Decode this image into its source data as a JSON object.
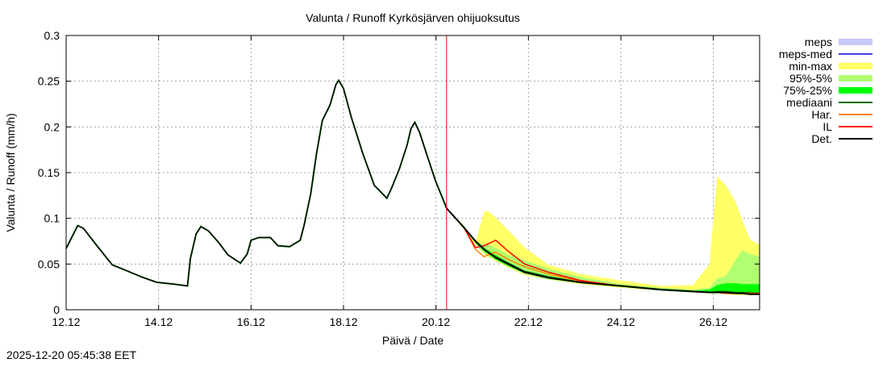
{
  "timestamp": "2025-12-20 05:45:38 EET",
  "chart_data": {
    "type": "line",
    "title": "Valunta / Runoff  Kyrkösjärven ohijuoksutus",
    "xlabel": "Päivä / Date",
    "ylabel": "Valunta / Runoff (mm/h)",
    "xlim": [
      "2025-12-12 00:00",
      "2025-12-27 00:00"
    ],
    "ylim": [
      0,
      0.3
    ],
    "grid": true,
    "legend_position": "right",
    "x_ticks": [
      {
        "date": "2025-12-12 00:00",
        "label": "12.12"
      },
      {
        "date": "2025-12-14 00:00",
        "label": "14.12"
      },
      {
        "date": "2025-12-16 00:00",
        "label": "16.12"
      },
      {
        "date": "2025-12-18 00:00",
        "label": "18.12"
      },
      {
        "date": "2025-12-20 00:00",
        "label": "20.12"
      },
      {
        "date": "2025-12-22 00:00",
        "label": "22.12"
      },
      {
        "date": "2025-12-24 00:00",
        "label": "24.12"
      },
      {
        "date": "2025-12-26 00:00",
        "label": "26.12"
      }
    ],
    "y_ticks": [
      {
        "value": 0,
        "label": "0"
      },
      {
        "value": 0.05,
        "label": "0.05"
      },
      {
        "value": 0.1,
        "label": "0.1"
      },
      {
        "value": 0.15,
        "label": "0.15"
      },
      {
        "value": 0.2,
        "label": "0.2"
      },
      {
        "value": 0.25,
        "label": "0.25"
      },
      {
        "value": 0.3,
        "label": "0.3"
      }
    ],
    "forecast_start": "2025-12-20 05:30",
    "forecast_start_color": "#ff0000",
    "legend": [
      {
        "name": "meps",
        "kind": "band",
        "color": "#c8c8f8"
      },
      {
        "name": "meps-med",
        "kind": "line",
        "color": "#4040e0"
      },
      {
        "name": "min-max",
        "kind": "band",
        "color": "#ffff66"
      },
      {
        "name": "95%-5%",
        "kind": "band",
        "color": "#b0ff70"
      },
      {
        "name": "75%-25%",
        "kind": "band",
        "color": "#00ff00"
      },
      {
        "name": "mediaani",
        "kind": "line",
        "color": "#007000"
      },
      {
        "name": "Har.",
        "kind": "line",
        "color": "#ff8000"
      },
      {
        "name": "IL",
        "kind": "line",
        "color": "#ff0000"
      },
      {
        "name": "Det.",
        "kind": "line",
        "color": "#000000"
      }
    ],
    "observed": {
      "name": "Det.",
      "x": [
        "2025-12-12 00:00",
        "2025-12-12 06:00",
        "2025-12-12 09:00",
        "2025-12-12 16:00",
        "2025-12-13 00:00",
        "2025-12-13 06:00",
        "2025-12-13 15:00",
        "2025-12-13 23:00",
        "2025-12-14 08:00",
        "2025-12-14 15:00",
        "2025-12-14 16:30",
        "2025-12-14 19:30",
        "2025-12-14 22:00",
        "2025-12-15 02:00",
        "2025-12-15 07:00",
        "2025-12-15 12:00",
        "2025-12-15 18:30",
        "2025-12-15 22:00",
        "2025-12-16 00:00",
        "2025-12-16 04:00",
        "2025-12-16 10:00",
        "2025-12-16 14:00",
        "2025-12-16 20:00",
        "2025-12-17 01:30",
        "2025-12-17 03:30",
        "2025-12-17 07:00",
        "2025-12-17 10:00",
        "2025-12-17 13:00",
        "2025-12-17 17:00",
        "2025-12-17 20:00",
        "2025-12-17 21:30",
        "2025-12-18 00:00",
        "2025-12-18 04:00",
        "2025-12-18 10:00",
        "2025-12-18 16:00",
        "2025-12-18 22:30",
        "2025-12-19 00:45",
        "2025-12-19 05:00",
        "2025-12-19 09:00",
        "2025-12-19 11:00",
        "2025-12-19 13:00",
        "2025-12-19 15:30",
        "2025-12-19 19:30",
        "2025-12-19 23:45",
        "2025-12-20 04:00",
        "2025-12-20 05:30"
      ],
      "y": [
        0.067,
        0.092,
        0.089,
        0.07,
        0.049,
        0.044,
        0.036,
        0.03,
        0.028,
        0.026,
        0.056,
        0.083,
        0.091,
        0.086,
        0.074,
        0.06,
        0.051,
        0.061,
        0.076,
        0.079,
        0.079,
        0.07,
        0.069,
        0.076,
        0.092,
        0.127,
        0.171,
        0.207,
        0.224,
        0.246,
        0.251,
        0.242,
        0.211,
        0.171,
        0.136,
        0.122,
        0.132,
        0.154,
        0.18,
        0.198,
        0.205,
        0.194,
        0.168,
        0.141,
        0.119,
        0.111
      ]
    },
    "forecast": {
      "x": [
        "2025-12-20 05:30",
        "2025-12-20 14:30",
        "2025-12-20 20:30",
        "2025-12-21 01:00",
        "2025-12-21 03:00",
        "2025-12-21 07:00",
        "2025-12-21 13:30",
        "2025-12-21 22:00",
        "2025-12-22 10:30",
        "2025-12-23 03:00",
        "2025-12-24 00:00",
        "2025-12-24 21:00",
        "2025-12-25 13:30",
        "2025-12-25 22:00",
        "2025-12-26 02:00",
        "2025-12-26 06:30",
        "2025-12-26 11:30",
        "2025-12-26 15:00",
        "2025-12-26 19:00",
        "2025-12-27 00:00"
      ],
      "min-max": {
        "lower": [
          0.111,
          0.088,
          0.071,
          0.061,
          0.058,
          0.053,
          0.046,
          0.038,
          0.033,
          0.028,
          0.024,
          0.021,
          0.019,
          0.018,
          0.018,
          0.017,
          0.016,
          0.016,
          0.016,
          0.016
        ],
        "upper": [
          0.111,
          0.092,
          0.074,
          0.107,
          0.108,
          0.101,
          0.087,
          0.068,
          0.049,
          0.039,
          0.032,
          0.026,
          0.027,
          0.05,
          0.146,
          0.136,
          0.118,
          0.098,
          0.077,
          0.071
        ]
      },
      "95%-5%": {
        "lower": [
          0.111,
          0.088,
          0.072,
          0.062,
          0.059,
          0.054,
          0.047,
          0.039,
          0.033,
          0.029,
          0.025,
          0.021,
          0.019,
          0.018,
          0.018,
          0.018,
          0.017,
          0.017,
          0.017,
          0.017
        ],
        "upper": [
          0.111,
          0.092,
          0.072,
          0.072,
          0.071,
          0.068,
          0.06,
          0.054,
          0.045,
          0.036,
          0.028,
          0.024,
          0.022,
          0.024,
          0.034,
          0.037,
          0.054,
          0.065,
          0.061,
          0.058
        ]
      },
      "75%-25%": {
        "lower": [
          0.111,
          0.089,
          0.073,
          0.064,
          0.061,
          0.055,
          0.048,
          0.04,
          0.034,
          0.029,
          0.025,
          0.021,
          0.019,
          0.019,
          0.019,
          0.018,
          0.018,
          0.018,
          0.018,
          0.018
        ],
        "upper": [
          0.111,
          0.091,
          0.076,
          0.068,
          0.065,
          0.06,
          0.052,
          0.043,
          0.037,
          0.031,
          0.027,
          0.023,
          0.021,
          0.022,
          0.027,
          0.029,
          0.029,
          0.028,
          0.028,
          0.028
        ]
      },
      "mediaani": [
        0.111,
        0.09,
        0.075,
        0.066,
        0.063,
        0.058,
        0.051,
        0.042,
        0.036,
        0.03,
        0.026,
        0.022,
        0.02,
        0.019,
        0.02,
        0.02,
        0.019,
        0.019,
        0.019,
        0.018
      ],
      "Har.": [
        0.111,
        0.09,
        0.066,
        0.058,
        0.06,
        0.063,
        0.055,
        0.047,
        0.039,
        0.031,
        0.026,
        0.022,
        0.02,
        0.019,
        0.019,
        0.019,
        0.018,
        0.018,
        0.018,
        0.018
      ],
      "IL": [
        0.111,
        0.09,
        0.068,
        0.07,
        0.072,
        0.076,
        0.064,
        0.05,
        0.041,
        0.032,
        0.026,
        0.022,
        0.02,
        0.019,
        0.019,
        0.018,
        0.018,
        0.018,
        0.017,
        0.018
      ],
      "Det.": [
        0.111,
        0.09,
        0.075,
        0.066,
        0.063,
        0.057,
        0.05,
        0.041,
        0.035,
        0.03,
        0.026,
        0.022,
        0.02,
        0.019,
        0.019,
        0.019,
        0.018,
        0.018,
        0.017,
        0.017
      ]
    }
  }
}
